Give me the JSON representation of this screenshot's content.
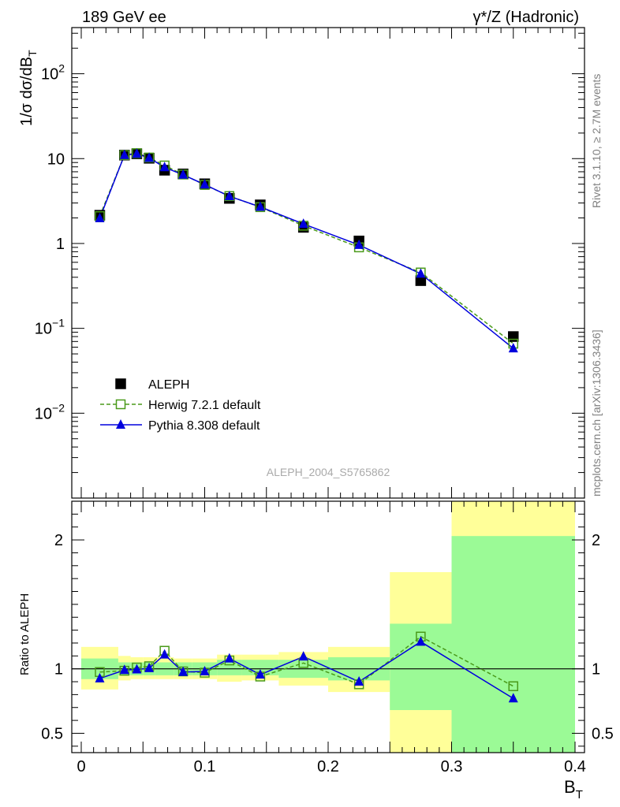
{
  "header": {
    "left": "189 GeV ee",
    "right": "γ*/Z (Hadronic)"
  },
  "side_text": {
    "rivet": "Rivet 3.1.10, ≥ 2.7M events",
    "mcplots": "mcplots.cern.ch [arXiv:1306.3436]"
  },
  "watermark": "ALEPH_2004_S5765862",
  "colors": {
    "data": "#000000",
    "herwig": "#4a9a1a",
    "pythia": "#0000dd",
    "band_inner": "#9bfa96",
    "band_outer": "#ffff99"
  },
  "chart_data": [
    {
      "type": "scatter",
      "panel": "main",
      "ylabel": "1/σ  dσ/dB",
      "ylabel_sub": "T",
      "yscale": "log",
      "xlim": [
        0,
        0.4
      ],
      "ylim": [
        0.001,
        350
      ],
      "y_ticks": [
        {
          "value": 0.01,
          "base": "10",
          "exp": "−2"
        },
        {
          "value": 0.1,
          "base": "10",
          "exp": "−1"
        },
        {
          "value": 1,
          "base": "1",
          "exp": ""
        },
        {
          "value": 10,
          "base": "10",
          "exp": ""
        },
        {
          "value": 100,
          "base": "10",
          "exp": "2"
        }
      ],
      "legend_position": "lower-left",
      "legend": [
        {
          "name": "ALEPH"
        },
        {
          "name": "Herwig 7.2.1 default"
        },
        {
          "name": "Pythia 8.308 default"
        }
      ],
      "x": [
        0.015,
        0.035,
        0.045,
        0.055,
        0.0675,
        0.0825,
        0.1,
        0.12,
        0.145,
        0.18,
        0.225,
        0.275,
        0.35
      ],
      "series": [
        {
          "name": "ALEPH",
          "values": [
            2.15,
            11.0,
            11.4,
            10.1,
            7.3,
            6.6,
            5.05,
            3.4,
            2.85,
            1.55,
            1.07,
            0.365,
            0.08
          ]
        },
        {
          "name": "Herwig 7.2.1 default",
          "values": [
            2.1,
            11.0,
            11.6,
            10.3,
            8.3,
            6.5,
            4.9,
            3.62,
            2.68,
            1.62,
            0.9,
            0.455,
            0.066
          ]
        },
        {
          "name": "Pythia 8.308 default",
          "values": [
            1.98,
            11.0,
            11.4,
            10.2,
            7.9,
            6.45,
            4.95,
            3.6,
            2.7,
            1.7,
            0.96,
            0.44,
            0.058
          ]
        }
      ]
    },
    {
      "type": "scatter",
      "panel": "ratio",
      "ylabel": "Ratio to ALEPH",
      "xlabel": "B",
      "xlabel_sub": "T",
      "xlim": [
        0,
        0.4
      ],
      "ylim": [
        0.35,
        2.3
      ],
      "x_tick_labels": [
        "0",
        "0.1",
        "0.2",
        "0.3",
        "0.4"
      ],
      "y_tick_labels": [
        "0.5",
        "1",
        "2"
      ],
      "bins": [
        {
          "lo": 0.0,
          "hi": 0.03,
          "inner": [
            0.92,
            1.08
          ],
          "outer": [
            0.84,
            1.17
          ]
        },
        {
          "lo": 0.03,
          "hi": 0.04,
          "inner": [
            0.95,
            1.05
          ],
          "outer": [
            0.91,
            1.1
          ]
        },
        {
          "lo": 0.04,
          "hi": 0.05,
          "inner": [
            0.95,
            1.05
          ],
          "outer": [
            0.92,
            1.09
          ]
        },
        {
          "lo": 0.05,
          "hi": 0.06,
          "inner": [
            0.95,
            1.05
          ],
          "outer": [
            0.92,
            1.09
          ]
        },
        {
          "lo": 0.06,
          "hi": 0.075,
          "inner": [
            0.95,
            1.05
          ],
          "outer": [
            0.92,
            1.09
          ]
        },
        {
          "lo": 0.075,
          "hi": 0.09,
          "inner": [
            0.95,
            1.05
          ],
          "outer": [
            0.92,
            1.08
          ]
        },
        {
          "lo": 0.09,
          "hi": 0.11,
          "inner": [
            0.95,
            1.05
          ],
          "outer": [
            0.92,
            1.08
          ]
        },
        {
          "lo": 0.11,
          "hi": 0.13,
          "inner": [
            0.95,
            1.07
          ],
          "outer": [
            0.9,
            1.11
          ]
        },
        {
          "lo": 0.13,
          "hi": 0.16,
          "inner": [
            0.95,
            1.07
          ],
          "outer": [
            0.91,
            1.11
          ]
        },
        {
          "lo": 0.16,
          "hi": 0.2,
          "inner": [
            0.93,
            1.07
          ],
          "outer": [
            0.87,
            1.13
          ]
        },
        {
          "lo": 0.2,
          "hi": 0.25,
          "inner": [
            0.91,
            1.09
          ],
          "outer": [
            0.82,
            1.17
          ]
        },
        {
          "lo": 0.25,
          "hi": 0.3,
          "inner": [
            0.68,
            1.35
          ],
          "outer": [
            0.3,
            1.75
          ]
        },
        {
          "lo": 0.3,
          "hi": 0.4,
          "inner": [
            0.3,
            2.03
          ],
          "outer": [
            0.3,
            2.5
          ]
        }
      ],
      "x": [
        0.015,
        0.035,
        0.045,
        0.055,
        0.0675,
        0.0825,
        0.1,
        0.12,
        0.145,
        0.18,
        0.225,
        0.275,
        0.35
      ],
      "series": [
        {
          "name": "Herwig 7.2.1 default",
          "values": [
            0.975,
            0.985,
            1.01,
            1.02,
            1.14,
            0.98,
            0.97,
            1.065,
            0.94,
            1.045,
            0.88,
            1.25,
            0.865
          ]
        },
        {
          "name": "Pythia 8.308 default",
          "values": [
            0.925,
            0.99,
            0.995,
            1.005,
            1.11,
            0.975,
            0.98,
            1.08,
            0.955,
            1.095,
            0.9,
            1.21,
            0.77
          ]
        }
      ]
    }
  ]
}
